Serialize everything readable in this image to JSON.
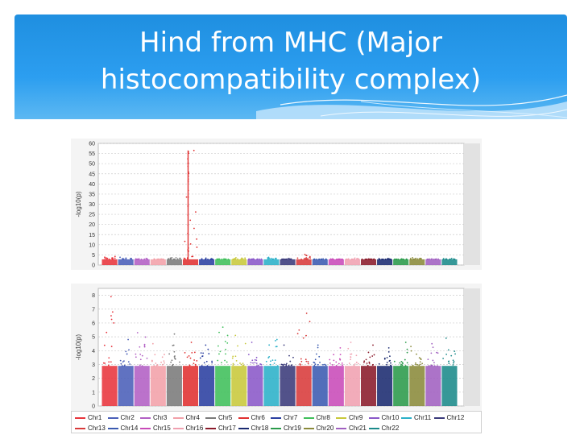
{
  "slide": {
    "title_line1": "Hind from MHC (Major",
    "title_line2": "histocompatibility complex)",
    "header_color": "#2592e3"
  },
  "chart_data": [
    {
      "type": "scatter",
      "name": "top-manhattan",
      "ylabel": "-log10(p)",
      "xlabel": "",
      "ylim": [
        0,
        60
      ],
      "yticks": [
        0,
        5,
        10,
        15,
        20,
        25,
        30,
        35,
        40,
        45,
        50,
        55,
        60
      ],
      "grid": true,
      "series": [
        {
          "chr": "Chr1",
          "max": 4.2
        },
        {
          "chr": "Chr2",
          "max": 3.8
        },
        {
          "chr": "Chr3",
          "max": 3.2
        },
        {
          "chr": "Chr4",
          "max": 3.0
        },
        {
          "chr": "Chr5",
          "max": 3.6
        },
        {
          "chr": "Chr6",
          "max": 56.5
        },
        {
          "chr": "Chr7",
          "max": 3.4
        },
        {
          "chr": "Chr8",
          "max": 3.0
        },
        {
          "chr": "Chr9",
          "max": 3.6
        },
        {
          "chr": "Chr10",
          "max": 3.0
        },
        {
          "chr": "Chr11",
          "max": 3.8
        },
        {
          "chr": "Chr12",
          "max": 3.2
        },
        {
          "chr": "Chr13",
          "max": 5.2
        },
        {
          "chr": "Chr14",
          "max": 3.0
        },
        {
          "chr": "Chr15",
          "max": 3.0
        },
        {
          "chr": "Chr16",
          "max": 3.4
        },
        {
          "chr": "Chr17",
          "max": 3.0
        },
        {
          "chr": "Chr18",
          "max": 3.2
        },
        {
          "chr": "Chr19",
          "max": 3.0
        },
        {
          "chr": "Chr20",
          "max": 3.6
        },
        {
          "chr": "Chr21",
          "max": 3.0
        },
        {
          "chr": "Chr22",
          "max": 3.2
        }
      ]
    },
    {
      "type": "scatter",
      "name": "bottom-manhattan",
      "ylabel": "-log10(p)",
      "xlabel": "",
      "ylim": [
        0,
        8.5
      ],
      "yticks": [
        0,
        1,
        2,
        3,
        4,
        5,
        6,
        7,
        8
      ],
      "grid": true,
      "series": [
        {
          "chr": "Chr1",
          "max": 7.9
        },
        {
          "chr": "Chr2",
          "max": 4.8
        },
        {
          "chr": "Chr3",
          "max": 5.3
        },
        {
          "chr": "Chr4",
          "max": 4.5
        },
        {
          "chr": "Chr5",
          "max": 5.2
        },
        {
          "chr": "Chr6",
          "max": 4.6
        },
        {
          "chr": "Chr7",
          "max": 4.4
        },
        {
          "chr": "Chr8",
          "max": 5.7
        },
        {
          "chr": "Chr9",
          "max": 5.1
        },
        {
          "chr": "Chr10",
          "max": 4.6
        },
        {
          "chr": "Chr11",
          "max": 4.8
        },
        {
          "chr": "Chr12",
          "max": 4.4
        },
        {
          "chr": "Chr13",
          "max": 6.7
        },
        {
          "chr": "Chr14",
          "max": 4.4
        },
        {
          "chr": "Chr15",
          "max": 4.2
        },
        {
          "chr": "Chr16",
          "max": 4.6
        },
        {
          "chr": "Chr17",
          "max": 4.4
        },
        {
          "chr": "Chr18",
          "max": 4.2
        },
        {
          "chr": "Chr19",
          "max": 4.6
        },
        {
          "chr": "Chr20",
          "max": 4.3
        },
        {
          "chr": "Chr21",
          "max": 4.5
        },
        {
          "chr": "Chr22",
          "max": 4.9
        }
      ]
    }
  ],
  "legend": {
    "entries": [
      {
        "label": "Chr1",
        "color": "#e8343c"
      },
      {
        "label": "Chr2",
        "color": "#4a5fb8"
      },
      {
        "label": "Chr3",
        "color": "#b25fc4"
      },
      {
        "label": "Chr4",
        "color": "#f2a0a8"
      },
      {
        "label": "Chr5",
        "color": "#7a7a7a"
      },
      {
        "label": "Chr6",
        "color": "#e03030"
      },
      {
        "label": "Chr7",
        "color": "#2a3fa0"
      },
      {
        "label": "Chr8",
        "color": "#3fbf5a"
      },
      {
        "label": "Chr9",
        "color": "#c8c83a"
      },
      {
        "label": "Chr10",
        "color": "#8a58c8"
      },
      {
        "label": "Chr11",
        "color": "#2ab0c8"
      },
      {
        "label": "Chr12",
        "color": "#3a3a7a"
      },
      {
        "label": "Chr13",
        "color": "#d83a3a"
      },
      {
        "label": "Chr14",
        "color": "#3a5ab0"
      },
      {
        "label": "Chr15",
        "color": "#c84ab8"
      },
      {
        "label": "Chr16",
        "color": "#f0a0b0"
      },
      {
        "label": "Chr17",
        "color": "#8a1a2a"
      },
      {
        "label": "Chr18",
        "color": "#1a2a70"
      },
      {
        "label": "Chr19",
        "color": "#2a9a4a"
      },
      {
        "label": "Chr20",
        "color": "#8a8a3a"
      },
      {
        "label": "Chr21",
        "color": "#a060c0"
      },
      {
        "label": "Chr22",
        "color": "#1a8a8a"
      }
    ]
  }
}
